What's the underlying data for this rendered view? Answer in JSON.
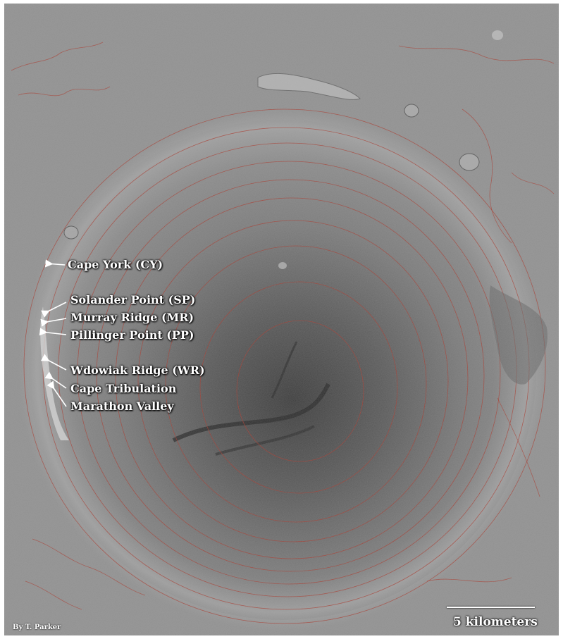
{
  "map": {
    "labels": {
      "cape_york": "Cape York (CY)",
      "solander_point": "Solander Point (SP)",
      "murray_ridge": "Murray Ridge (MR)",
      "pillinger_point": "Pillinger Point (PP)",
      "wdowiak_ridge": "Wdowiak Ridge (WR)",
      "cape_tribulation": "Cape Tribulation",
      "marathon_valley": "Marathon Valley"
    },
    "credit": "By T. Parker",
    "scale_label": "5 kilometers",
    "colors": {
      "terrain": "#8e8e8e",
      "contour": "#a83a2e",
      "label_text": "#ffffff"
    }
  }
}
